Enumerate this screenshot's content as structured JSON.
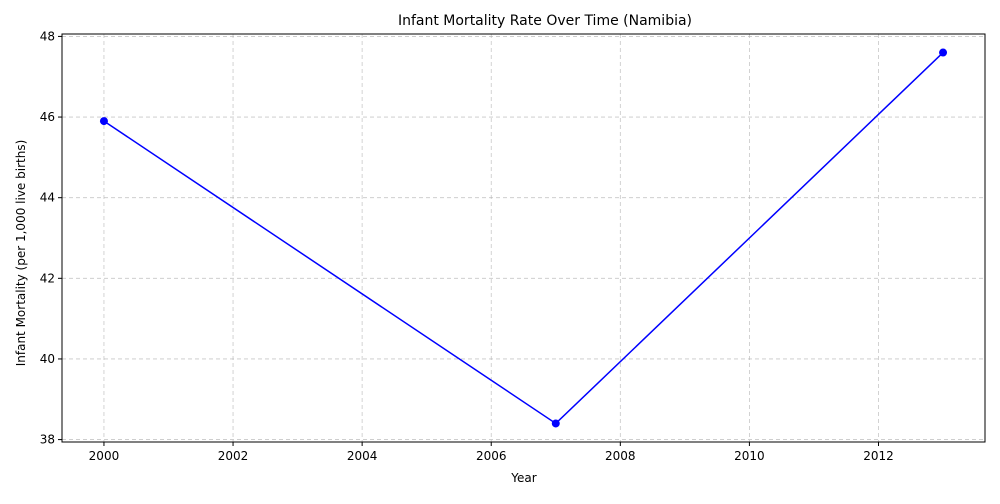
{
  "chart_data": {
    "type": "line",
    "title": "Infant Mortality Rate Over Time (Namibia)",
    "xlabel": "Year",
    "ylabel": "Infant Mortality (per 1,000 live births)",
    "x": [
      2000,
      2007,
      2013
    ],
    "series": [
      {
        "values": [
          45.9,
          38.4,
          47.6
        ],
        "color": "#0000ff",
        "marker": "circle"
      }
    ],
    "xlim": [
      1999.35,
      2013.65
    ],
    "ylim": [
      37.94,
      48.06
    ],
    "xticks": [
      2000,
      2002,
      2004,
      2006,
      2008,
      2010,
      2012
    ],
    "yticks": [
      38,
      40,
      42,
      44,
      46,
      48
    ],
    "grid": true,
    "grid_style": "dashed",
    "legend": "none"
  }
}
